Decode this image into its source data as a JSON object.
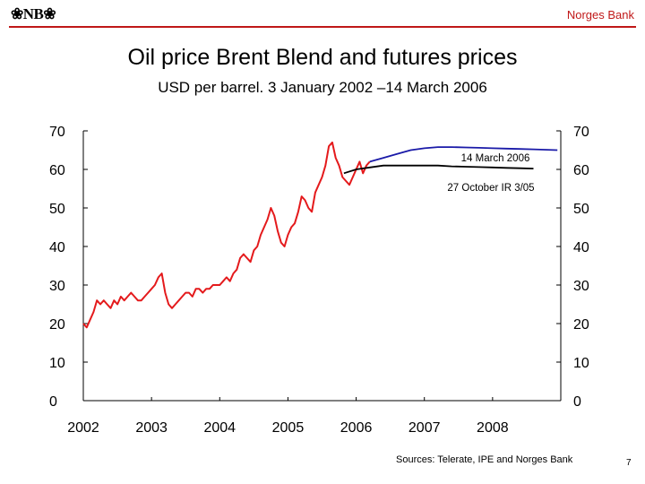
{
  "header": {
    "logo_text": "NB",
    "org_name": "Norges Bank",
    "accent_color": "#c01818"
  },
  "title": "Oil price Brent Blend and futures prices",
  "subtitle": "USD per barrel. 3 January 2002 –14 March 2006",
  "sources": "Sources: Telerate, IPE and Norges Bank",
  "page_number": "7",
  "chart_data": {
    "type": "line",
    "title": "Oil price Brent Blend and futures prices",
    "subtitle": "USD per barrel. 3 January 2002 –14 March 2006",
    "xlabel": "",
    "ylabel": "",
    "xlim": [
      2002,
      2009
    ],
    "ylim": [
      0,
      70
    ],
    "x_ticks": [
      "2002",
      "2003",
      "2004",
      "2005",
      "2006",
      "2007",
      "2008"
    ],
    "y_ticks_left": [
      "0",
      "10",
      "20",
      "30",
      "40",
      "50",
      "60",
      "70"
    ],
    "y_ticks_right": [
      "0",
      "10",
      "20",
      "30",
      "40",
      "50",
      "60",
      "70"
    ],
    "grid": false,
    "legend": "none",
    "annotations": [
      {
        "text": "14 March 2006",
        "x": 2006.6,
        "y": 65
      },
      {
        "text": "27 October IR 3/05",
        "x": 2006.6,
        "y": 56
      }
    ],
    "series": [
      {
        "color": "#e41a1c",
        "x": [
          2002.0,
          2002.05,
          2002.1,
          2002.15,
          2002.2,
          2002.25,
          2002.3,
          2002.35,
          2002.4,
          2002.45,
          2002.5,
          2002.55,
          2002.6,
          2002.65,
          2002.7,
          2002.75,
          2002.8,
          2002.85,
          2002.9,
          2002.95,
          2003.0,
          2003.05,
          2003.1,
          2003.15,
          2003.2,
          2003.25,
          2003.3,
          2003.35,
          2003.4,
          2003.45,
          2003.5,
          2003.55,
          2003.6,
          2003.65,
          2003.7,
          2003.75,
          2003.8,
          2003.85,
          2003.9,
          2003.95,
          2004.0,
          2004.05,
          2004.1,
          2004.15,
          2004.2,
          2004.25,
          2004.3,
          2004.35,
          2004.4,
          2004.45,
          2004.5,
          2004.55,
          2004.6,
          2004.65,
          2004.7,
          2004.75,
          2004.8,
          2004.85,
          2004.9,
          2004.95,
          2005.0,
          2005.05,
          2005.1,
          2005.15,
          2005.2,
          2005.25,
          2005.3,
          2005.35,
          2005.4,
          2005.45,
          2005.5,
          2005.55,
          2005.6,
          2005.65,
          2005.7,
          2005.75,
          2005.8,
          2005.85,
          2005.9,
          2005.95,
          2006.0,
          2006.05,
          2006.1,
          2006.15,
          2006.2
        ],
        "values": [
          20,
          19,
          21,
          23,
          26,
          25,
          26,
          25,
          24,
          26,
          25,
          27,
          26,
          27,
          28,
          27,
          26,
          26,
          27,
          28,
          29,
          30,
          32,
          33,
          28,
          25,
          24,
          25,
          26,
          27,
          28,
          28,
          27,
          29,
          29,
          28,
          29,
          29,
          30,
          30,
          30,
          31,
          32,
          31,
          33,
          34,
          37,
          38,
          37,
          36,
          39,
          40,
          43,
          45,
          47,
          50,
          48,
          44,
          41,
          40,
          43,
          45,
          46,
          49,
          53,
          52,
          50,
          49,
          54,
          56,
          58,
          61,
          66,
          67,
          63,
          61,
          58,
          57,
          56,
          58,
          60,
          62,
          59,
          61,
          62
        ]
      },
      {
        "color": "#1a1aa8",
        "x": [
          2006.2,
          2006.4,
          2006.6,
          2006.8,
          2007.0,
          2007.2,
          2007.4,
          2007.6,
          2007.8,
          2008.0,
          2008.2,
          2008.4,
          2008.6,
          2008.8,
          2008.95
        ],
        "values": [
          62,
          63,
          64,
          65,
          65.5,
          65.8,
          65.8,
          65.7,
          65.6,
          65.5,
          65.4,
          65.3,
          65.2,
          65.1,
          65
        ]
      },
      {
        "color": "#000000",
        "x": [
          2005.82,
          2006.0,
          2006.2,
          2006.4,
          2006.6,
          2006.8,
          2007.0,
          2007.2,
          2007.4,
          2007.6,
          2007.8,
          2008.0,
          2008.2,
          2008.4,
          2008.6
        ],
        "values": [
          59,
          60,
          60.5,
          61,
          61,
          61,
          61,
          61,
          60.8,
          60.7,
          60.6,
          60.5,
          60.4,
          60.3,
          60.2
        ]
      }
    ]
  }
}
